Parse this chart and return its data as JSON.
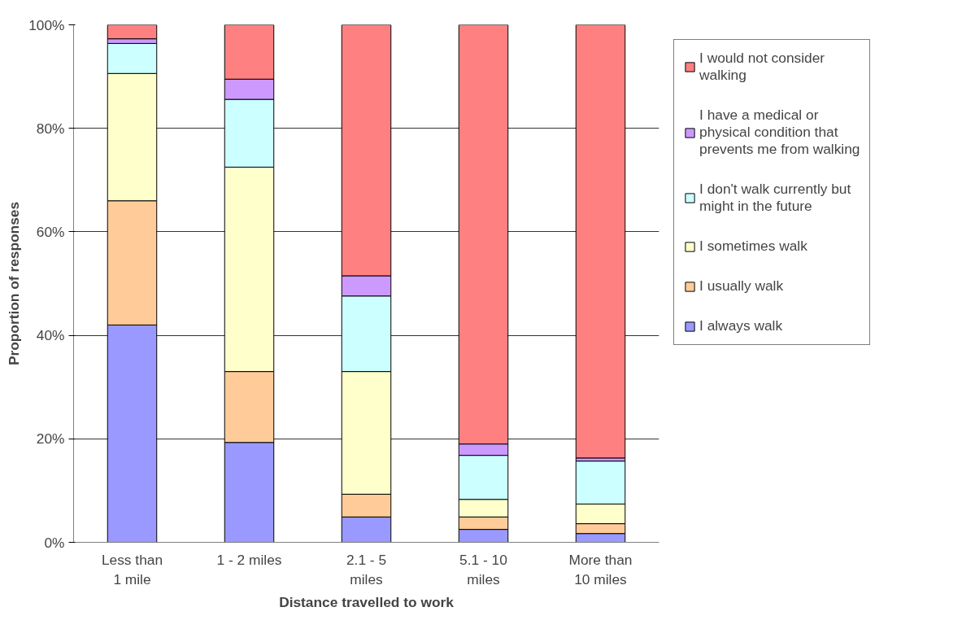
{
  "chart_data": {
    "type": "bar",
    "stacked": true,
    "xlabel": "Distance travelled to work",
    "ylabel": "Proportion of responses",
    "categories": [
      "Less than 1 mile",
      "1 - 2 miles",
      "2.1 - 5 miles",
      "5.1 - 10 miles",
      "More than 10 miles"
    ],
    "ylim": [
      0,
      100
    ],
    "yticks": [
      {
        "value": 0,
        "label": "0%"
      },
      {
        "value": 20,
        "label": "20%"
      },
      {
        "value": 40,
        "label": "40%"
      },
      {
        "value": 60,
        "label": "60%"
      },
      {
        "value": 80,
        "label": "80%"
      },
      {
        "value": 100,
        "label": "100%"
      }
    ],
    "grid": "y",
    "legend": "right",
    "series": [
      {
        "name": "I always walk",
        "color": "#9999ff",
        "values": [
          42,
          19.3,
          4.9,
          2.5,
          1.7
        ]
      },
      {
        "name": "I usually walk",
        "color": "#ffcc99",
        "values": [
          24,
          13.7,
          4.4,
          2.4,
          1.9
        ]
      },
      {
        "name": "I sometimes walk",
        "color": "#ffffcc",
        "values": [
          24.6,
          39.5,
          23.7,
          3.4,
          3.8
        ]
      },
      {
        "name": "I don't walk currently but might in the future",
        "color": "#ccffff",
        "values": [
          5.8,
          13.1,
          14.6,
          8.5,
          8.3
        ]
      },
      {
        "name": "I have a medical or physical condition that prevents me from walking",
        "color": "#cc99ff",
        "values": [
          0.9,
          3.9,
          3.9,
          2.2,
          0.6
        ]
      },
      {
        "name": "I would not consider walking",
        "color": "#ff8080",
        "values": [
          2.7,
          10.5,
          48.5,
          81,
          83.7
        ]
      }
    ]
  }
}
